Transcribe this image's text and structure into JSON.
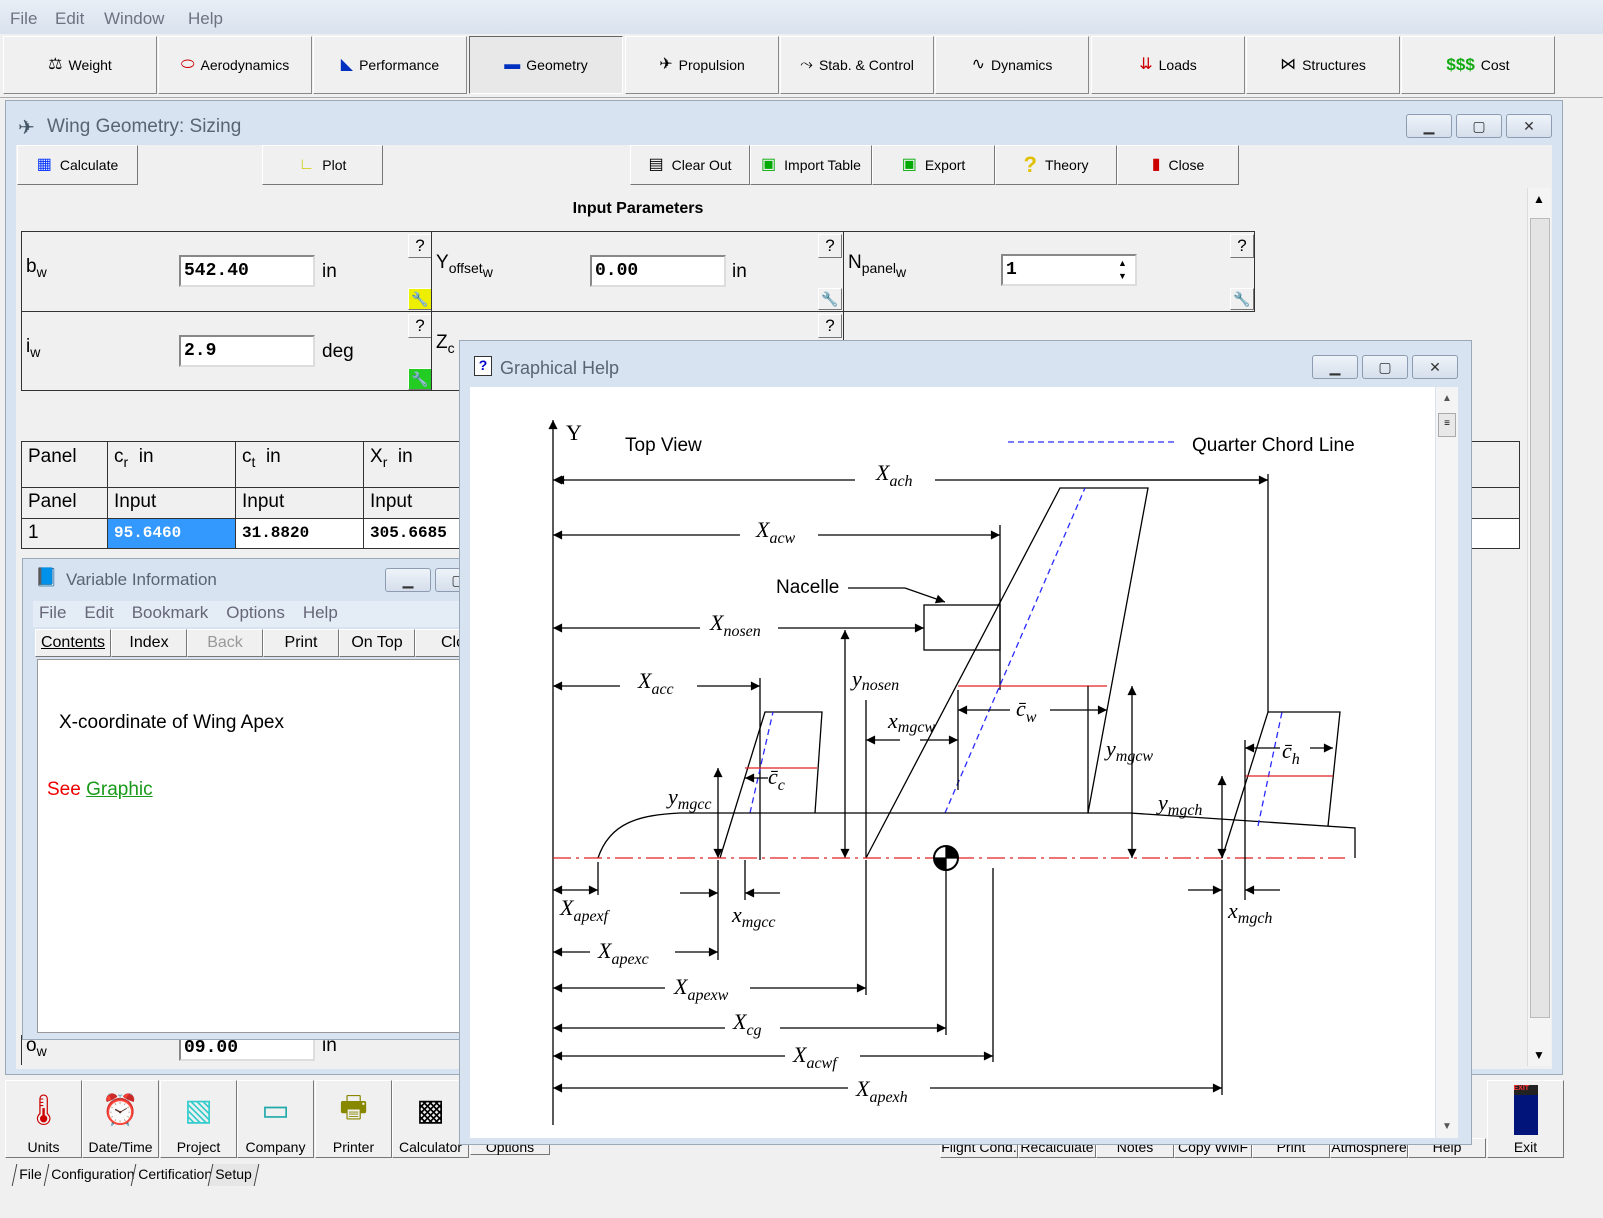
{
  "menu": [
    "File",
    "Edit",
    "Window",
    "Help"
  ],
  "toolbar": [
    {
      "label": "Weight",
      "icon": "scale-icon"
    },
    {
      "label": "Aerodynamics",
      "icon": "airfoil-icon"
    },
    {
      "label": "Performance",
      "icon": "range-icon"
    },
    {
      "label": "Geometry",
      "icon": "aircraft-geometry-icon",
      "pressed": true
    },
    {
      "label": "Propulsion",
      "icon": "propeller-icon"
    },
    {
      "label": "Stab. & Control",
      "icon": "stability-icon"
    },
    {
      "label": "Dynamics",
      "icon": "dynamics-icon"
    },
    {
      "label": "Loads",
      "icon": "loads-icon"
    },
    {
      "label": "Structures",
      "icon": "structures-icon"
    },
    {
      "label": "Cost",
      "icon_text": "$$$"
    }
  ],
  "main_window": {
    "title": "Wing Geometry: Sizing",
    "buttons": {
      "calculate": "Calculate",
      "plot": "Plot",
      "clear_out": "Clear Out",
      "import_table": "Import Table",
      "export": "Export",
      "theory": "Theory",
      "close": "Close"
    },
    "section_title": "Input Parameters",
    "params": [
      {
        "sym": "b",
        "sub": "w",
        "value": "542.40",
        "unit": "in"
      },
      {
        "sym": "Y",
        "sub": "offset",
        "sub2": "w",
        "value": "0.00",
        "unit": "in"
      },
      {
        "sym": "N",
        "sub": "panel",
        "sub2": "w",
        "value": "1"
      },
      {
        "sym": "i",
        "sub": "w",
        "value": "2.9",
        "unit": "deg"
      },
      {
        "sym": "Z",
        "sub": "c"
      }
    ],
    "help_label": "?",
    "table": {
      "headers": [
        {
          "sym": "Panel"
        },
        {
          "sym": "c",
          "sub": "r",
          "unit": "in"
        },
        {
          "sym": "c",
          "sub": "t",
          "unit": "in"
        },
        {
          "sym": "X",
          "sub": "r",
          "unit": "in"
        }
      ],
      "subheaders": [
        "Panel",
        "Input",
        "Input",
        "Input"
      ],
      "rows": [
        [
          "1",
          "95.6460",
          "31.8820",
          "305.6685"
        ]
      ]
    },
    "hidden_row": {
      "sym": "o",
      "sub": "w",
      "value": "09.00",
      "unit": "in"
    }
  },
  "variable_info": {
    "title": "Variable Information",
    "menu": [
      "File",
      "Edit",
      "Bookmark",
      "Options",
      "Help"
    ],
    "buttons": [
      "Contents",
      "Index",
      "Back",
      "Print",
      "On Top",
      "Clo"
    ],
    "description": "X-coordinate of Wing Apex",
    "see": "See",
    "link": "Graphic"
  },
  "graphical_help": {
    "title": "Graphical Help",
    "axis": "Y",
    "view_label": "Top View",
    "legend": "Quarter Chord Line",
    "nacelle": "Nacelle",
    "labels": [
      {
        "m": "X",
        "s": "ach"
      },
      {
        "m": "X",
        "s": "acw"
      },
      {
        "m": "X",
        "s": "nosen"
      },
      {
        "m": "y",
        "s": "nosen"
      },
      {
        "m": "X",
        "s": "acc"
      },
      {
        "m": "x",
        "s": "mgcw"
      },
      {
        "m": "c̄",
        "s": "w"
      },
      {
        "m": "y",
        "s": "mgcw"
      },
      {
        "m": "c̄",
        "s": "c"
      },
      {
        "m": "y",
        "s": "mgcc"
      },
      {
        "m": "c̄",
        "s": "h"
      },
      {
        "m": "y",
        "s": "mgch"
      },
      {
        "m": "X",
        "s": "apexf"
      },
      {
        "m": "x",
        "s": "mgcc"
      },
      {
        "m": "X",
        "s": "apexc"
      },
      {
        "m": "X",
        "s": "apexw"
      },
      {
        "m": "X",
        "s": "cg"
      },
      {
        "m": "X",
        "s": "acwf"
      },
      {
        "m": "X",
        "s": "apexh"
      },
      {
        "m": "x",
        "s": "mgch"
      }
    ],
    "colors": {
      "quarter_chord": "#2a2aff",
      "mgc": "#e02020",
      "centerline": "#e02020"
    }
  },
  "bottom_toolbar": [
    {
      "label": "Units",
      "icon": "thermometer-icon"
    },
    {
      "label": "Date/Time",
      "icon": "calendar-clock-icon"
    },
    {
      "label": "Project",
      "icon": "project-icon"
    },
    {
      "label": "Company",
      "icon": "company-sign-icon"
    },
    {
      "label": "Printer",
      "icon": "printer-icon"
    },
    {
      "label": "Calculator",
      "icon": "calculator-icon"
    },
    {
      "label": "Options"
    }
  ],
  "bottom_right": [
    "Flight Cond.",
    "Recalculate",
    "Notes",
    "Copy WMF",
    "Print",
    "Atmosphere",
    "Help"
  ],
  "exit": {
    "label": "Exit",
    "sign": "EXIT"
  },
  "tabs": [
    "File",
    "Configuration",
    "Certification",
    "Setup"
  ]
}
